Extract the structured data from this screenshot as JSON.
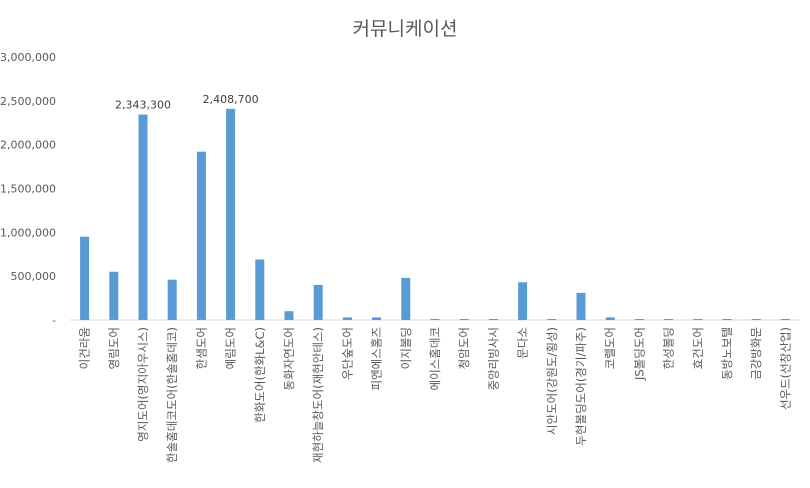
{
  "chart_data": {
    "type": "bar",
    "title": "커뮤니케이션",
    "categories": [
      "이건라움",
      "영림도어",
      "영지도어(영지아우시스)",
      "한솔홈데코도어(한솔홈데코)",
      "한샘도어",
      "예림도어",
      "한화도어(한화L&C)",
      "동화자연도어",
      "재현하늘창도어(재현안테스)",
      "우단숲도어",
      "피엔에스홈즈",
      "이지볼딩",
      "에이스홈데코",
      "청암도어",
      "중앙리빙사시",
      "문다소",
      "시안도어(강원도/횡성)",
      "두현볼딩도어(경기/파주)",
      "코렐도어",
      "JS볼딩도어",
      "한성볼딩",
      "효건도어",
      "동방노보텔",
      "금강방화문",
      "선우드(선창산업)"
    ],
    "values": [
      950000,
      550000,
      2343300,
      460000,
      1920000,
      2408700,
      690000,
      100000,
      400000,
      30000,
      30000,
      480000,
      8000,
      8000,
      8000,
      430000,
      8000,
      310000,
      30000,
      8000,
      8000,
      8000,
      8000,
      8000,
      8000
    ],
    "data_labels": [
      "",
      "",
      "2,343,300",
      "",
      "",
      "2,408,700",
      "",
      "",
      "",
      "",
      "",
      "",
      "",
      "",
      "",
      "",
      "",
      "",
      "",
      "",
      "",
      "",
      "",
      "",
      ""
    ],
    "ylim": [
      0,
      3000000
    ],
    "yticks": [
      0,
      500000,
      1000000,
      1500000,
      2000000,
      2500000,
      3000000
    ],
    "ytick_labels": [
      "-",
      "500,000",
      "1,000,000",
      "1,500,000",
      "2,000,000",
      "2,500,000",
      "3,000,000"
    ],
    "bar_color": "#5b9bd5",
    "axis_color": "#d9d9d9",
    "grid": false,
    "legend": "none"
  }
}
